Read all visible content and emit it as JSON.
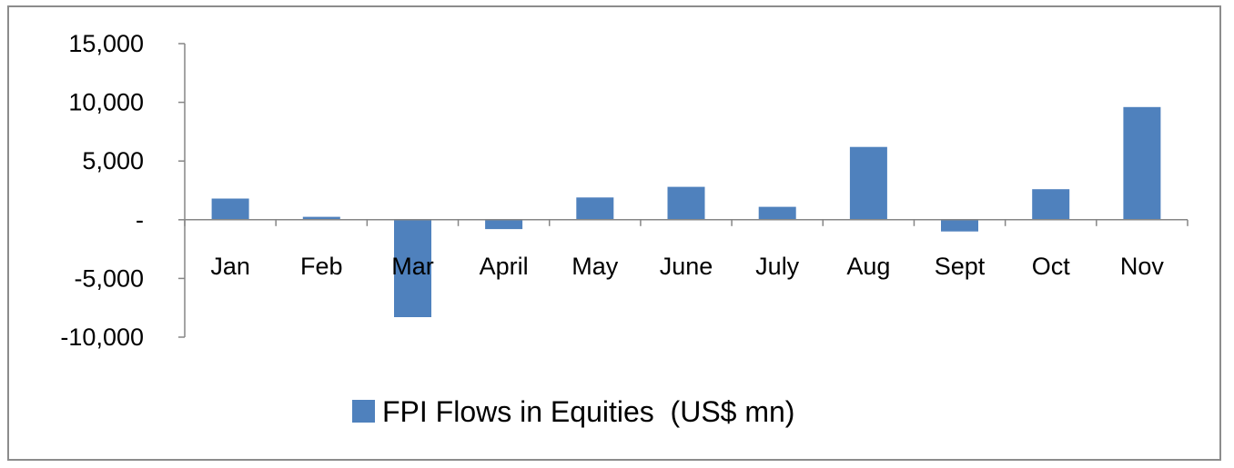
{
  "chart_data": {
    "type": "bar",
    "categories": [
      "Jan",
      "Feb",
      "Mar",
      "April",
      "May",
      "June",
      "July",
      "Aug",
      "Sept",
      "Oct",
      "Nov"
    ],
    "series": [
      {
        "name": "FPI Flows in Equities  (US$ mn)",
        "values": [
          1800,
          250,
          -8300,
          -800,
          1900,
          2800,
          1100,
          6200,
          -1000,
          2600,
          9600
        ]
      }
    ],
    "y_ticks": [
      15000,
      10000,
      5000,
      0,
      -5000,
      -10000
    ],
    "y_tick_labels": [
      "15,000",
      "10,000",
      "5,000",
      "-",
      "-5,000",
      "-10,000"
    ],
    "ylim": [
      -10000,
      15000
    ],
    "legend_position": "bottom",
    "grid": false,
    "bar_color": "#4f81bd",
    "axis_color": "#868686"
  }
}
